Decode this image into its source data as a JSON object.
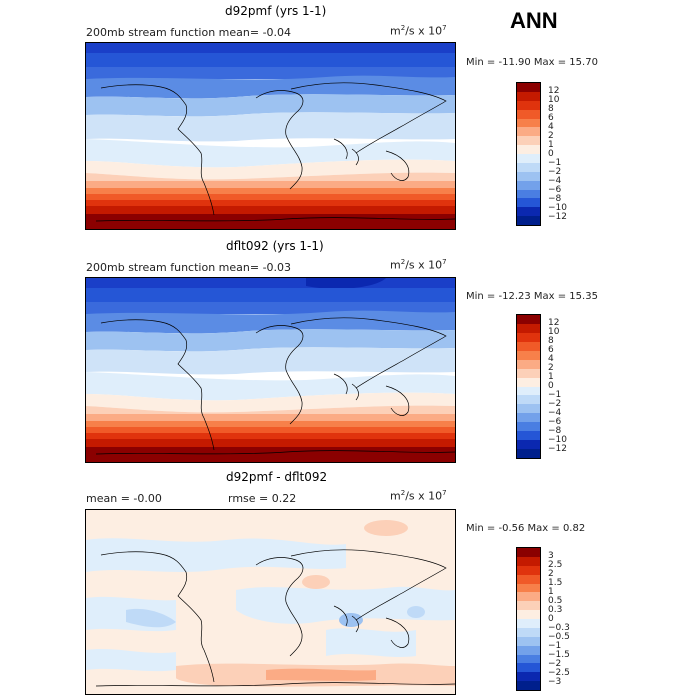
{
  "season": "ANN",
  "panels": [
    {
      "title": "d92pmf (yrs 1-1)",
      "left_text": "200mb stream function  mean=  -0.04",
      "rmse_text": "",
      "units_main": "m",
      "units_exp1": "2",
      "units_mid": "/s x 10",
      "units_exp2": "7",
      "minmax": "Min = -11.90 Max =  15.70",
      "levels": [
        "12",
        "10",
        "8",
        "6",
        "4",
        "2",
        "1",
        "0",
        "−1",
        "−2",
        "−4",
        "−6",
        "−8",
        "−10",
        "−12"
      ],
      "colors": [
        "#8b0000",
        "#c41a00",
        "#e0330d",
        "#f05a28",
        "#f7804a",
        "#fbab85",
        "#fcd0b8",
        "#fdeee2",
        "#dfeefb",
        "#bfdaf7",
        "#9dc2f1",
        "#73a1ea",
        "#4a7ee2",
        "#2556d6",
        "#0b28b0",
        "#001f8c"
      ]
    },
    {
      "title": "dflt092 (yrs 1-1)",
      "left_text": "200mb stream function  mean=  -0.03",
      "rmse_text": "",
      "units_main": "m",
      "units_exp1": "2",
      "units_mid": "/s x 10",
      "units_exp2": "7",
      "minmax": "Min = -12.23 Max =  15.35",
      "levels": [
        "12",
        "10",
        "8",
        "6",
        "4",
        "2",
        "1",
        "0",
        "−1",
        "−2",
        "−4",
        "−6",
        "−8",
        "−10",
        "−12"
      ],
      "colors": [
        "#8b0000",
        "#c41a00",
        "#e0330d",
        "#f05a28",
        "#f7804a",
        "#fbab85",
        "#fcd0b8",
        "#fdeee2",
        "#dfeefb",
        "#bfdaf7",
        "#9dc2f1",
        "#73a1ea",
        "#4a7ee2",
        "#2556d6",
        "#0b28b0",
        "#001f8c"
      ]
    },
    {
      "title": "d92pmf - dflt092",
      "left_text": "mean =   -0.00",
      "rmse_text": "rmse =    0.22",
      "units_main": "m",
      "units_exp1": "2",
      "units_mid": "/s x 10",
      "units_exp2": "7",
      "minmax": "Min =  -0.56 Max =   0.82",
      "levels": [
        "3",
        "2.5",
        "2",
        "1.5",
        "1",
        "0.5",
        "0.3",
        "0",
        "−0.3",
        "−0.5",
        "−1",
        "−1.5",
        "−2",
        "−2.5",
        "−3"
      ],
      "colors": [
        "#8b0000",
        "#c41a00",
        "#e0330d",
        "#f05a28",
        "#f7804a",
        "#fbab85",
        "#fcd0b8",
        "#fdeee2",
        "#dfeefb",
        "#bfdaf7",
        "#9dc2f1",
        "#73a1ea",
        "#4a7ee2",
        "#2556d6",
        "#0b28b0",
        "#001f8c"
      ]
    }
  ]
}
